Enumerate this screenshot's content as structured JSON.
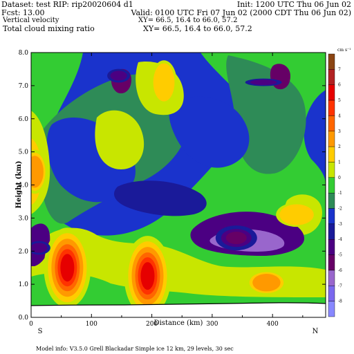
{
  "header": {
    "dataset": "Dataset: test   RIP: rip20020604  d1",
    "init": "Init: 1200 UTC Thu 06 Jun 02",
    "fcst": "Fcst:    13.00",
    "valid": "Valid: 0100 UTC Fri 07 Jun 02 (2000 CDT Thu 06 Jun 02)",
    "field1": "Vertical velocity",
    "xy1": "XY=   66.5, 16.4 to   66.0, 57.2",
    "field2": "Total cloud mixing ratio",
    "xy2": "XY=   66.5, 16.4 to   66.0, 57.2"
  },
  "footer": {
    "model_info": "Model info: V3.5.0   Grell        Blackadar   Simple ice      12 km,    29 levels,     30 sec"
  },
  "chart_data": {
    "type": "heatmap",
    "xlabel": "Distance (km)",
    "ylabel": "Height (km)",
    "xlim": [
      0,
      488
    ],
    "ylim": [
      0.0,
      8.0
    ],
    "x_ticks": [
      0,
      100,
      200,
      300,
      400
    ],
    "y_ticks": [
      "0.0",
      "1.0",
      "2.0",
      "3.0",
      "4.0",
      "5.0",
      "6.0",
      "7.0",
      "8.0"
    ],
    "endpoints": {
      "left": "S",
      "right": "N"
    },
    "colorbar": {
      "unit": "cm s⁻¹",
      "labels": [
        "7",
        "6",
        "5",
        "4",
        "3",
        "2",
        "1",
        "0",
        "-1",
        "-2",
        "-3",
        "-4",
        "-5",
        "-6",
        "-7",
        "-8"
      ],
      "colors": [
        "#8b4513",
        "#b22222",
        "#e60000",
        "#ff3300",
        "#ff6600",
        "#ff9900",
        "#ffcc00",
        "#c8e600",
        "#33cc33",
        "#2e8b57",
        "#1a33cc",
        "#1a1a99",
        "#4b0082",
        "#660066",
        "#9966cc",
        "#7b68ee",
        "#8888ff"
      ]
    },
    "blobs": [
      {
        "x": 60,
        "y": 1.5,
        "color_index": 2,
        "label": "updraft"
      },
      {
        "x": 193,
        "y": 1.25,
        "color_index": 2,
        "label": "updraft"
      },
      {
        "x": 390,
        "y": 1.05,
        "color_index": 5,
        "label": "updraft"
      },
      {
        "x": 6,
        "y": 4.4,
        "color_index": 5,
        "label": "updraft"
      },
      {
        "x": 220,
        "y": 7.1,
        "color_index": 6,
        "label": "updraft"
      },
      {
        "x": 340,
        "y": 2.4,
        "color_index": 13,
        "label": "downdraft"
      },
      {
        "x": 145,
        "y": 7.3,
        "color_index": 12,
        "label": "downdraft"
      },
      {
        "x": 385,
        "y": 7.1,
        "color_index": 12,
        "label": "downdraft"
      },
      {
        "x": 440,
        "y": 3.1,
        "color_index": 6,
        "label": "updraft"
      },
      {
        "x": 13,
        "y": 2.1,
        "color_index": 12,
        "label": "downdraft"
      }
    ]
  }
}
